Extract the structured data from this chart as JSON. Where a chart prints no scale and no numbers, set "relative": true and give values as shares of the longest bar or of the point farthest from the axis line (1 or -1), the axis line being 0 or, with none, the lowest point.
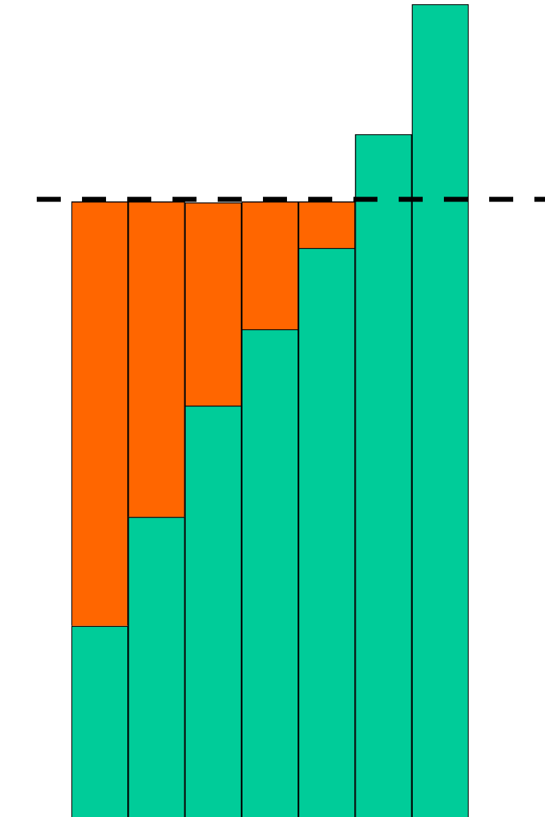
{
  "chart_data": {
    "type": "bar",
    "stacked": true,
    "relative": true,
    "categories": [
      null,
      null,
      null,
      null,
      null,
      null,
      null
    ],
    "series": [
      {
        "color": "#00cc99",
        "values": [
          0.235,
          0.369,
          0.506,
          0.6,
          0.7,
          0.84,
          1
        ]
      },
      {
        "color": "#ff6600",
        "values": [
          0.522,
          0.388,
          0.25,
          0.157,
          0.057,
          null,
          null
        ]
      }
    ],
    "ref_lines": [
      {
        "axis": "y",
        "value": 0.76,
        "color": "#000000",
        "line_style": "dashed"
      }
    ],
    "legend": false
  }
}
